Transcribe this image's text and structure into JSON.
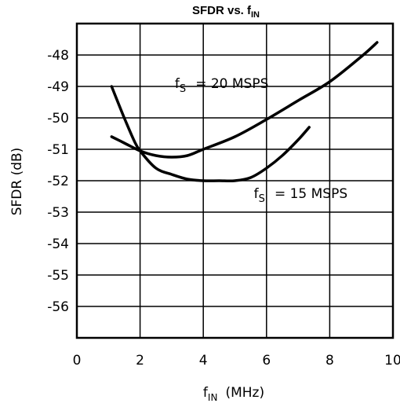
{
  "chart_data": {
    "type": "line",
    "title": "SFDR vs. f",
    "title_sub": "IN",
    "xlabel": "f",
    "xlabel_sub": "IN",
    "xlabel_unit": "(MHz)",
    "ylabel": "SFDR (dB)",
    "xlim": [
      0,
      10
    ],
    "ylim": [
      -57,
      -47
    ],
    "x_ticks": [
      0,
      2,
      4,
      6,
      8,
      10
    ],
    "x_tick_labels": [
      "0",
      "2",
      "4",
      "6",
      "8",
      "10"
    ],
    "y_ticks": [
      -48,
      -49,
      -50,
      -51,
      -52,
      -53,
      -54,
      -55,
      -56
    ],
    "y_tick_labels": [
      "-48",
      "-49",
      "-50",
      "-51",
      "-52",
      "-53",
      "-54",
      "-55",
      "-56"
    ],
    "grid": true,
    "series": [
      {
        "name": "20 MSPS",
        "x": [
          1.1,
          1.5,
          2.0,
          2.5,
          3.0,
          3.5,
          4.0,
          5.0,
          6.0,
          7.0,
          8.0,
          9.0,
          9.5
        ],
        "y": [
          -50.6,
          -50.8,
          -51.05,
          -51.2,
          -51.25,
          -51.2,
          -51.0,
          -50.6,
          -50.05,
          -49.45,
          -48.85,
          -48.05,
          -47.6
        ]
      },
      {
        "name": "15 MSPS",
        "x": [
          1.1,
          1.5,
          1.8,
          2.0,
          2.5,
          3.0,
          3.5,
          4.0,
          4.5,
          5.0,
          5.5,
          6.0,
          6.5,
          7.0,
          7.35
        ],
        "y": [
          -49.0,
          -50.0,
          -50.7,
          -51.05,
          -51.6,
          -51.8,
          -51.95,
          -52.0,
          -52.0,
          -52.0,
          -51.9,
          -51.6,
          -51.2,
          -50.7,
          -50.3
        ]
      }
    ],
    "annotations": [
      {
        "label": "f",
        "sub": "S",
        "text": "= 20 MSPS",
        "x": 3.1,
        "y": -49.05
      },
      {
        "label": "f",
        "sub": "S",
        "text": "= 15 MSPS",
        "x": 5.6,
        "y": -52.55
      }
    ]
  }
}
